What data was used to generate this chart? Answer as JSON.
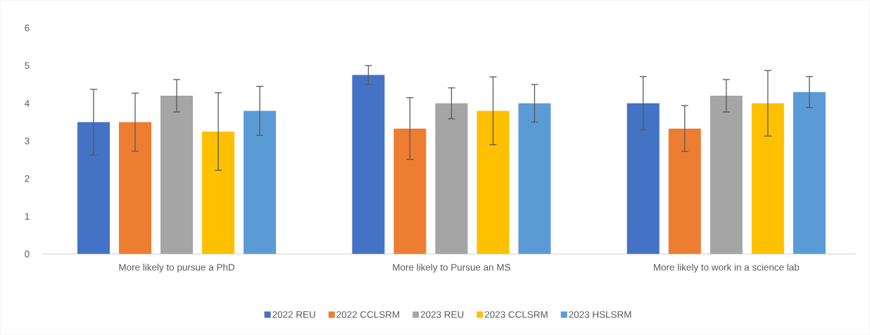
{
  "chart_data": {
    "type": "bar",
    "categories": [
      "More likely to pursue a PhD",
      "More likely to Pursue an MS",
      "More likely to work in a science lab"
    ],
    "series": [
      {
        "name": "2022 REU",
        "color": "#4472c4",
        "values": [
          3.5,
          4.75,
          4.0
        ],
        "errors": [
          0.87,
          0.25,
          0.71
        ]
      },
      {
        "name": "2022 CCLSRM",
        "color": "#ed7d31",
        "values": [
          3.5,
          3.33,
          3.33
        ],
        "errors": [
          0.77,
          0.82,
          0.61
        ]
      },
      {
        "name": "2023 REU",
        "color": "#a5a5a5",
        "values": [
          4.2,
          4.0,
          4.2
        ],
        "errors": [
          0.43,
          0.41,
          0.43
        ]
      },
      {
        "name": "2023 CCLSRM",
        "color": "#ffc000",
        "values": [
          3.25,
          3.8,
          4.0
        ],
        "errors": [
          1.03,
          0.9,
          0.87
        ]
      },
      {
        "name": "2023 HSLSRM",
        "color": "#5b9bd5",
        "values": [
          3.8,
          4.0,
          4.3
        ],
        "errors": [
          0.65,
          0.5,
          0.41
        ]
      }
    ],
    "ylim": [
      0,
      6
    ],
    "yticks": [
      0,
      1,
      2,
      3,
      4,
      5,
      6
    ],
    "grid": false,
    "legend": "bottom"
  }
}
